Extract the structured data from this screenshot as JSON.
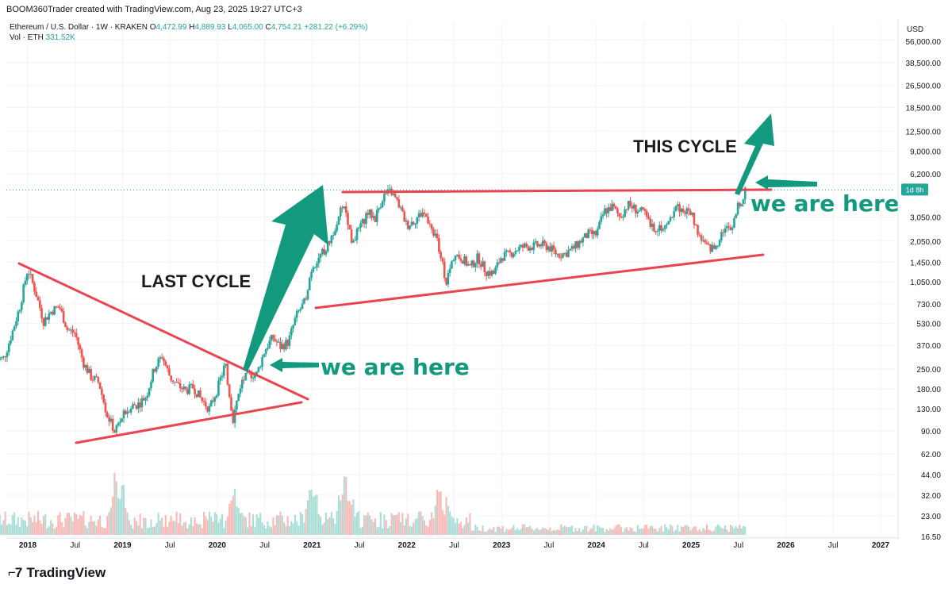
{
  "header": {
    "credit": "BOOM360Trader created with TradingView.com, Aug 23, 2025 19:27 UTC+3"
  },
  "legend": {
    "symbol": "Ethereum / U.S. Dollar · 1W · KRAKEN",
    "o_label": "O",
    "o_value": "4,472.99",
    "h_label": "H",
    "h_value": "4,889.93",
    "l_label": "L",
    "l_value": "4,065.00",
    "c_label": "C",
    "c_value": "4,754.21",
    "change": "+281.22 (+6.29%)",
    "vol_label": "Vol · ETH",
    "vol_value": "331.52K"
  },
  "price_axis": {
    "currency": "USD",
    "ticks": [
      "56,000.00",
      "38,500.00",
      "26,500.00",
      "18,500.00",
      "12,500.00",
      "9,000.00",
      "6,200.00",
      "3,050.00",
      "2,050.00",
      "1,450.00",
      "1,050.00",
      "730.00",
      "530.00",
      "370.00",
      "250.00",
      "180.00",
      "130.00",
      "90.00",
      "62.00",
      "44.00",
      "32.00",
      "23.00",
      "16.50"
    ],
    "countdown": "1d 8h"
  },
  "time_axis": {
    "ticks": [
      "2018",
      "Jul",
      "2019",
      "Jul",
      "2020",
      "Jul",
      "2021",
      "Jul",
      "2022",
      "Jul",
      "2023",
      "Jul",
      "2024",
      "Jul",
      "2025",
      "Jul",
      "2026",
      "Jul",
      "2027"
    ]
  },
  "annotations": {
    "last_cycle": "LAST CYCLE",
    "this_cycle": "THIS CYCLE",
    "we_are_here_1": "we are here",
    "we_are_here_2": "we are here"
  },
  "footer": {
    "brand": "TradingView"
  },
  "colors": {
    "up": "#26a69a",
    "down": "#ef5350",
    "trendline": "#e84552",
    "annotation": "#12997e",
    "price_line": "#2c9e8e",
    "countdown_bg": "#26a69a"
  },
  "chart_data": {
    "type": "candlestick",
    "title": "Ethereum / U.S. Dollar · 1W · KRAKEN",
    "y_scale": "log",
    "ylim": [
      16.5,
      56000
    ],
    "x_range": [
      "2017-09",
      "2027-02"
    ],
    "last_price": 4754.21,
    "path": [
      [
        "2017-09",
        290
      ],
      [
        "2017-10",
        300
      ],
      [
        "2017-11",
        450
      ],
      [
        "2017-12",
        700
      ],
      [
        "2018-01",
        1300
      ],
      [
        "2018-02",
        880
      ],
      [
        "2018-03",
        550
      ],
      [
        "2018-04",
        650
      ],
      [
        "2018-05",
        700
      ],
      [
        "2018-06",
        480
      ],
      [
        "2018-07",
        450
      ],
      [
        "2018-08",
        280
      ],
      [
        "2018-09",
        220
      ],
      [
        "2018-10",
        200
      ],
      [
        "2018-11",
        120
      ],
      [
        "2018-12",
        90
      ],
      [
        "2019-01",
        115
      ],
      [
        "2019-02",
        135
      ],
      [
        "2019-03",
        140
      ],
      [
        "2019-04",
        160
      ],
      [
        "2019-05",
        250
      ],
      [
        "2019-06",
        310
      ],
      [
        "2019-07",
        220
      ],
      [
        "2019-08",
        190
      ],
      [
        "2019-09",
        175
      ],
      [
        "2019-10",
        185
      ],
      [
        "2019-11",
        150
      ],
      [
        "2019-12",
        130
      ],
      [
        "2020-01",
        180
      ],
      [
        "2020-02",
        270
      ],
      [
        "2020-03",
        110
      ],
      [
        "2020-04",
        200
      ],
      [
        "2020-05",
        230
      ],
      [
        "2020-06",
        230
      ],
      [
        "2020-07",
        340
      ],
      [
        "2020-08",
        420
      ],
      [
        "2020-09",
        360
      ],
      [
        "2020-10",
        390
      ],
      [
        "2020-11",
        600
      ],
      [
        "2020-12",
        740
      ],
      [
        "2021-01",
        1350
      ],
      [
        "2021-02",
        1600
      ],
      [
        "2021-03",
        1900
      ],
      [
        "2021-04",
        2700
      ],
      [
        "2021-05",
        3900
      ],
      [
        "2021-06",
        2100
      ],
      [
        "2021-07",
        2450
      ],
      [
        "2021-08",
        3300
      ],
      [
        "2021-09",
        3000
      ],
      [
        "2021-10",
        4300
      ],
      [
        "2021-11",
        4650
      ],
      [
        "2021-12",
        3700
      ],
      [
        "2022-01",
        2650
      ],
      [
        "2022-02",
        2900
      ],
      [
        "2022-03",
        3300
      ],
      [
        "2022-04",
        2800
      ],
      [
        "2022-05",
        1950
      ],
      [
        "2022-06",
        1050
      ],
      [
        "2022-07",
        1650
      ],
      [
        "2022-08",
        1550
      ],
      [
        "2022-09",
        1330
      ],
      [
        "2022-10",
        1570
      ],
      [
        "2022-11",
        1250
      ],
      [
        "2022-12",
        1200
      ],
      [
        "2023-01",
        1600
      ],
      [
        "2023-02",
        1650
      ],
      [
        "2023-03",
        1800
      ],
      [
        "2023-04",
        1880
      ],
      [
        "2023-05",
        1880
      ],
      [
        "2023-06",
        1930
      ],
      [
        "2023-07",
        1860
      ],
      [
        "2023-08",
        1650
      ],
      [
        "2023-09",
        1670
      ],
      [
        "2023-10",
        1800
      ],
      [
        "2023-11",
        2050
      ],
      [
        "2023-12",
        2300
      ],
      [
        "2024-01",
        2290
      ],
      [
        "2024-02",
        3350
      ],
      [
        "2024-03",
        3600
      ],
      [
        "2024-04",
        3050
      ],
      [
        "2024-05",
        3750
      ],
      [
        "2024-06",
        3450
      ],
      [
        "2024-07",
        3250
      ],
      [
        "2024-08",
        2550
      ],
      [
        "2024-09",
        2600
      ],
      [
        "2024-10",
        2550
      ],
      [
        "2024-11",
        3700
      ],
      [
        "2024-12",
        3350
      ],
      [
        "2025-01",
        3300
      ],
      [
        "2025-02",
        2250
      ],
      [
        "2025-03",
        1850
      ],
      [
        "2025-04",
        1800
      ],
      [
        "2025-05",
        2500
      ],
      [
        "2025-06",
        2500
      ],
      [
        "2025-07",
        3700
      ],
      [
        "2025-08",
        4754
      ]
    ],
    "volume_peaks": [
      [
        "2018-12",
        90
      ],
      [
        "2019-01",
        70
      ],
      [
        "2020-03",
        90
      ],
      [
        "2021-01",
        95
      ],
      [
        "2021-05",
        100
      ],
      [
        "2021-06",
        60
      ],
      [
        "2022-05",
        70
      ],
      [
        "2022-06",
        55
      ],
      [
        "2024-08",
        25
      ],
      [
        "2025-08",
        40
      ]
    ]
  }
}
